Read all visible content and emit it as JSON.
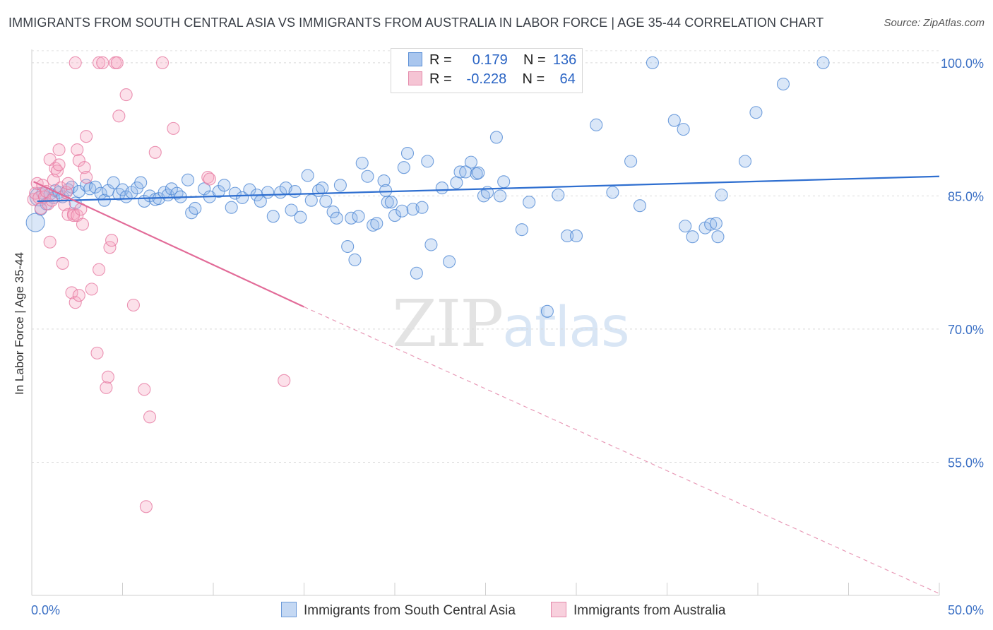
{
  "title": "IMMIGRANTS FROM SOUTH CENTRAL ASIA VS IMMIGRANTS FROM AUSTRALIA IN LABOR FORCE | AGE 35-44 CORRELATION CHART",
  "source": "Source: ZipAtlas.com",
  "watermark": {
    "zip": "ZIP",
    "atlas": "atlas"
  },
  "colors": {
    "blue": "#2f6fd0",
    "blue_fill": "#a9c6ee",
    "pink": "#e26b98",
    "pink_fill": "#f5b7cb",
    "axis_label": "#3a6fc4"
  },
  "legend": {
    "rows": [
      {
        "r_label": "R =",
        "r_value": "0.179",
        "n_label": "N =",
        "n_value": "136"
      },
      {
        "r_label": "R =",
        "r_value": "-0.228",
        "n_label": "N =",
        "n_value": "64"
      }
    ]
  },
  "bottom_legend": [
    "Immigrants from South Central Asia",
    "Immigrants from Australia"
  ],
  "chart_data": {
    "type": "scatter",
    "title": "IMMIGRANTS FROM SOUTH CENTRAL ASIA VS IMMIGRANTS FROM AUSTRALIA IN LABOR FORCE | AGE 35-44 CORRELATION CHART",
    "xlabel": "",
    "ylabel": "In Labor Force | Age 35-44",
    "xlim": [
      0,
      50
    ],
    "ylim": [
      40,
      101.5
    ],
    "x_tick_labels": [
      "0.0%",
      "50.0%"
    ],
    "y_ticks": [
      55,
      70,
      85,
      100
    ],
    "y_tick_labels": [
      "55.0%",
      "70.0%",
      "85.0%",
      "100.0%"
    ],
    "grid": true,
    "legend_position": "top-center",
    "series": [
      {
        "name": "Immigrants from South Central Asia",
        "color": "#2f6fd0",
        "trend": {
          "x": [
            0.3,
            50
          ],
          "y": [
            84.4,
            87.2
          ]
        },
        "points": [
          [
            0.2,
            82.0
          ],
          [
            0.4,
            84.9
          ],
          [
            0.5,
            83.5
          ],
          [
            0.6,
            85.3
          ],
          [
            0.8,
            84.1
          ],
          [
            1.0,
            85.2
          ],
          [
            1.2,
            84.8
          ],
          [
            1.3,
            85.6
          ],
          [
            1.5,
            85.4
          ],
          [
            1.7,
            84.9
          ],
          [
            2.0,
            85.7
          ],
          [
            2.2,
            86.0
          ],
          [
            2.4,
            84.2
          ],
          [
            2.6,
            85.5
          ],
          [
            3.0,
            86.2
          ],
          [
            3.2,
            85.8
          ],
          [
            3.5,
            86.0
          ],
          [
            3.8,
            85.3
          ],
          [
            4.0,
            84.5
          ],
          [
            4.2,
            85.6
          ],
          [
            4.5,
            86.5
          ],
          [
            4.8,
            85.2
          ],
          [
            5.0,
            85.7
          ],
          [
            5.2,
            84.9
          ],
          [
            5.5,
            85.4
          ],
          [
            5.8,
            85.9
          ],
          [
            6.0,
            86.5
          ],
          [
            6.2,
            84.4
          ],
          [
            6.5,
            85.0
          ],
          [
            6.8,
            84.6
          ],
          [
            7.0,
            84.7
          ],
          [
            7.3,
            85.4
          ],
          [
            7.5,
            85.1
          ],
          [
            7.7,
            85.8
          ],
          [
            8.0,
            85.3
          ],
          [
            8.2,
            84.9
          ],
          [
            8.6,
            86.8
          ],
          [
            8.8,
            83.1
          ],
          [
            9.0,
            83.6
          ],
          [
            9.5,
            85.8
          ],
          [
            9.8,
            84.9
          ],
          [
            10.3,
            85.5
          ],
          [
            10.6,
            86.2
          ],
          [
            11.0,
            83.7
          ],
          [
            11.2,
            85.3
          ],
          [
            11.6,
            84.8
          ],
          [
            12.0,
            85.7
          ],
          [
            12.4,
            85.1
          ],
          [
            12.6,
            84.4
          ],
          [
            13.0,
            85.4
          ],
          [
            13.3,
            82.7
          ],
          [
            13.7,
            85.4
          ],
          [
            14.0,
            85.9
          ],
          [
            14.3,
            83.4
          ],
          [
            14.5,
            85.5
          ],
          [
            14.8,
            82.6
          ],
          [
            15.2,
            87.3
          ],
          [
            15.4,
            84.5
          ],
          [
            15.8,
            85.6
          ],
          [
            16.0,
            85.9
          ],
          [
            16.2,
            84.4
          ],
          [
            16.6,
            83.2
          ],
          [
            16.8,
            82.5
          ],
          [
            17.0,
            86.2
          ],
          [
            17.4,
            79.3
          ],
          [
            17.6,
            82.5
          ],
          [
            17.8,
            77.8
          ],
          [
            18.0,
            82.7
          ],
          [
            18.2,
            88.7
          ],
          [
            18.5,
            87.2
          ],
          [
            18.8,
            81.7
          ],
          [
            19.0,
            81.9
          ],
          [
            19.4,
            86.7
          ],
          [
            19.5,
            85.6
          ],
          [
            19.6,
            84.3
          ],
          [
            19.8,
            84.3
          ],
          [
            20.0,
            82.8
          ],
          [
            20.4,
            83.3
          ],
          [
            20.5,
            88.2
          ],
          [
            20.7,
            89.8
          ],
          [
            21.0,
            83.5
          ],
          [
            21.2,
            76.3
          ],
          [
            21.5,
            83.7
          ],
          [
            21.8,
            88.9
          ],
          [
            22.0,
            79.5
          ],
          [
            22.6,
            85.9
          ],
          [
            23.0,
            77.6
          ],
          [
            23.4,
            86.5
          ],
          [
            23.6,
            87.7
          ],
          [
            23.9,
            87.7
          ],
          [
            24.2,
            88.8
          ],
          [
            24.5,
            87.5
          ],
          [
            24.6,
            87.6
          ],
          [
            24.9,
            85.0
          ],
          [
            25.1,
            85.4
          ],
          [
            25.6,
            91.6
          ],
          [
            25.8,
            85.0
          ],
          [
            26.0,
            86.6
          ],
          [
            27.0,
            81.2
          ],
          [
            27.4,
            84.3
          ],
          [
            28.4,
            72.0
          ],
          [
            29.0,
            85.1
          ],
          [
            29.5,
            80.5
          ],
          [
            30.0,
            80.5
          ],
          [
            31.1,
            93.0
          ],
          [
            32.0,
            85.4
          ],
          [
            33.0,
            88.9
          ],
          [
            33.5,
            83.9
          ],
          [
            34.2,
            100.0
          ],
          [
            35.4,
            93.5
          ],
          [
            35.9,
            92.5
          ],
          [
            36.0,
            81.6
          ],
          [
            36.4,
            80.4
          ],
          [
            37.1,
            81.4
          ],
          [
            37.4,
            81.8
          ],
          [
            37.7,
            81.9
          ],
          [
            37.8,
            80.4
          ],
          [
            38.0,
            85.1
          ],
          [
            39.3,
            88.9
          ],
          [
            39.9,
            94.4
          ],
          [
            41.4,
            97.6
          ],
          [
            43.6,
            100.0
          ]
        ]
      },
      {
        "name": "Immigrants from Australia",
        "color": "#e26b98",
        "trend": {
          "x": [
            0.1,
            15.0
          ],
          "y": [
            86.6,
            72.5
          ]
        },
        "trend_extension": {
          "x": [
            15.0,
            50.0
          ],
          "y": [
            72.5,
            40.2
          ]
        },
        "points": [
          [
            0.1,
            84.6
          ],
          [
            0.2,
            85.3
          ],
          [
            0.3,
            86.4
          ],
          [
            0.4,
            84.8
          ],
          [
            0.5,
            83.6
          ],
          [
            0.6,
            86.2
          ],
          [
            0.7,
            84.9
          ],
          [
            0.8,
            85.5
          ],
          [
            0.9,
            84.1
          ],
          [
            1.0,
            89.1
          ],
          [
            1.0,
            79.8
          ],
          [
            1.1,
            84.5
          ],
          [
            1.2,
            86.8
          ],
          [
            1.3,
            88.1
          ],
          [
            1.4,
            87.8
          ],
          [
            1.5,
            90.2
          ],
          [
            1.5,
            88.5
          ],
          [
            1.6,
            85.9
          ],
          [
            1.7,
            77.4
          ],
          [
            1.8,
            84.0
          ],
          [
            1.9,
            85.4
          ],
          [
            2.0,
            86.4
          ],
          [
            2.0,
            82.9
          ],
          [
            2.2,
            74.1
          ],
          [
            2.3,
            83.0
          ],
          [
            2.3,
            82.8
          ],
          [
            2.4,
            73.0
          ],
          [
            2.4,
            100.0
          ],
          [
            2.5,
            82.8
          ],
          [
            2.5,
            90.2
          ],
          [
            2.6,
            73.8
          ],
          [
            2.6,
            89.0
          ],
          [
            2.7,
            83.5
          ],
          [
            2.8,
            81.8
          ],
          [
            2.9,
            88.2
          ],
          [
            3.0,
            87.1
          ],
          [
            3.0,
            91.7
          ],
          [
            3.3,
            74.5
          ],
          [
            3.6,
            67.3
          ],
          [
            3.7,
            76.7
          ],
          [
            3.7,
            100.0
          ],
          [
            3.9,
            100.0
          ],
          [
            4.1,
            63.4
          ],
          [
            4.2,
            64.6
          ],
          [
            4.3,
            79.2
          ],
          [
            4.4,
            80.0
          ],
          [
            4.6,
            100.0
          ],
          [
            4.7,
            100.0
          ],
          [
            4.8,
            94.0
          ],
          [
            5.2,
            96.4
          ],
          [
            5.6,
            72.7
          ],
          [
            6.2,
            63.2
          ],
          [
            6.3,
            50.0
          ],
          [
            6.5,
            60.1
          ],
          [
            6.8,
            89.9
          ],
          [
            7.2,
            100.0
          ],
          [
            7.8,
            92.6
          ],
          [
            9.7,
            87.1
          ],
          [
            9.8,
            86.9
          ],
          [
            13.9,
            64.2
          ]
        ]
      }
    ]
  }
}
